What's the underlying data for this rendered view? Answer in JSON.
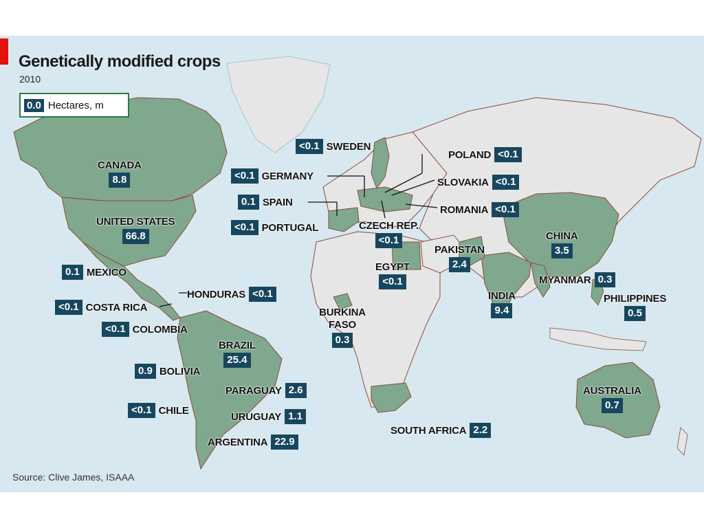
{
  "title": "Genetically modified crops",
  "subtitle": "2010",
  "legend": {
    "swatch_label": "0.0",
    "text": "Hectares, m"
  },
  "source": "Source: Clive James, ISAAA",
  "colors": {
    "gm_country": "#7fa88e",
    "other_land": "#e6e6e6",
    "ocean": "#d8e8f0",
    "value_box": "#17475e",
    "border": "#8a4a3a",
    "accent_red": "#e3120b"
  },
  "countries": [
    {
      "name": "CANADA",
      "value": "8.8"
    },
    {
      "name": "UNITED STATES",
      "value": "66.8"
    },
    {
      "name": "MEXICO",
      "value": "0.1"
    },
    {
      "name": "HONDURAS",
      "value": "<0.1"
    },
    {
      "name": "COSTA RICA",
      "value": "<0.1"
    },
    {
      "name": "COLOMBIA",
      "value": "<0.1"
    },
    {
      "name": "BRAZIL",
      "value": "25.4"
    },
    {
      "name": "BOLIVIA",
      "value": "0.9"
    },
    {
      "name": "PARAGUAY",
      "value": "2.6"
    },
    {
      "name": "CHILE",
      "value": "<0.1"
    },
    {
      "name": "URUGUAY",
      "value": "1.1"
    },
    {
      "name": "ARGENTINA",
      "value": "22.9"
    },
    {
      "name": "SWEDEN",
      "value": "<0.1"
    },
    {
      "name": "GERMANY",
      "value": "<0.1"
    },
    {
      "name": "SPAIN",
      "value": "0.1"
    },
    {
      "name": "PORTUGAL",
      "value": "<0.1"
    },
    {
      "name": "POLAND",
      "value": "<0.1"
    },
    {
      "name": "SLOVAKIA",
      "value": "<0.1"
    },
    {
      "name": "ROMANIA",
      "value": "<0.1"
    },
    {
      "name": "CZECH REP.",
      "value": "<0.1"
    },
    {
      "name": "EGYPT",
      "value": "<0.1"
    },
    {
      "name": "BURKINA FASO",
      "value": "0.3"
    },
    {
      "name": "SOUTH AFRICA",
      "value": "2.2"
    },
    {
      "name": "PAKISTAN",
      "value": "2.4"
    },
    {
      "name": "INDIA",
      "value": "9.4"
    },
    {
      "name": "CHINA",
      "value": "3.5"
    },
    {
      "name": "MYANMAR",
      "value": "0.3"
    },
    {
      "name": "PHILIPPINES",
      "value": "0.5"
    },
    {
      "name": "AUSTRALIA",
      "value": "0.7"
    }
  ]
}
